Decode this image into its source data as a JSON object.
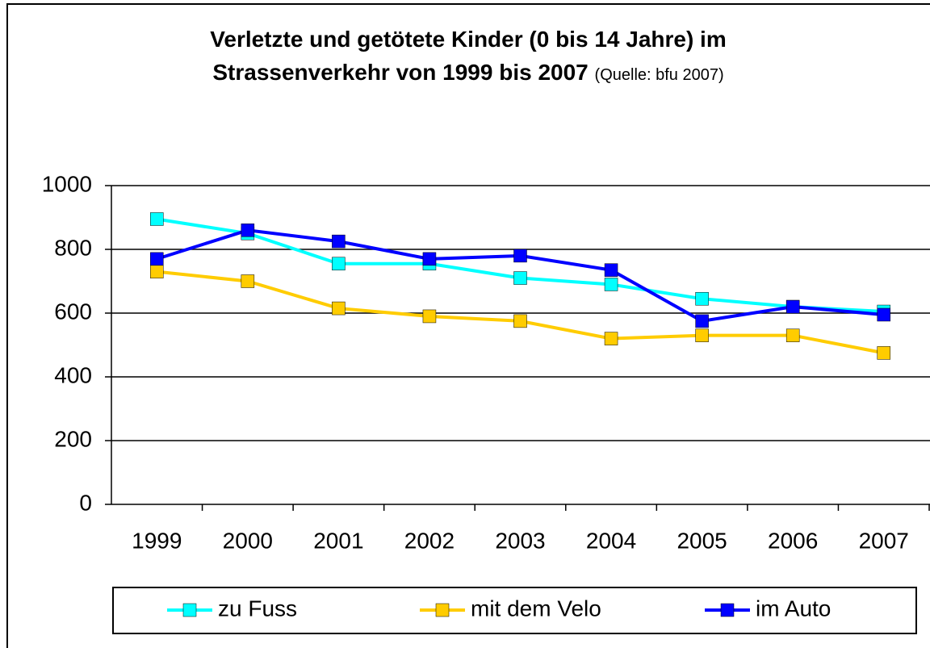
{
  "chart_data": {
    "type": "line",
    "title": "Verletzte und getötete Kinder (0 bis 14 Jahre) im Strassenverkehr von 1999 bis 2007",
    "source": "(Quelle: bfu 2007)",
    "categories": [
      "1999",
      "2000",
      "2001",
      "2002",
      "2003",
      "2004",
      "2005",
      "2006",
      "2007"
    ],
    "series": [
      {
        "name": "zu Fuss",
        "color": "#00ffff",
        "values": [
          895,
          850,
          755,
          755,
          710,
          690,
          645,
          620,
          605
        ]
      },
      {
        "name": "mit dem Velo",
        "color": "#ffcc00",
        "values": [
          730,
          700,
          615,
          590,
          575,
          520,
          530,
          530,
          475
        ]
      },
      {
        "name": "im Auto",
        "color": "#0000ff",
        "values": [
          770,
          860,
          825,
          770,
          780,
          735,
          575,
          620,
          595
        ]
      }
    ],
    "ylim": [
      0,
      1000
    ],
    "yticks": [
      0,
      200,
      400,
      600,
      800,
      1000
    ],
    "grid": true,
    "legend": "bottom"
  }
}
